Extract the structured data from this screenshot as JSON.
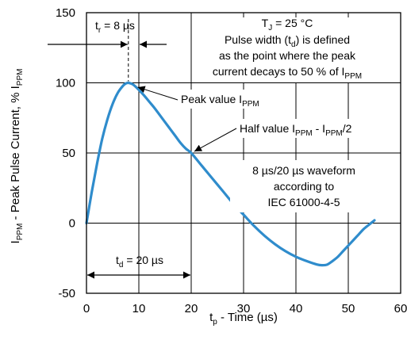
{
  "chart_data": {
    "type": "line",
    "xlabel_main": "t",
    "xlabel_sub": "p",
    "xlabel_rest": " - Time (µs)",
    "ylabel_parts": [
      {
        "t": "I",
        "s": false
      },
      {
        "t": "PPM",
        "s": true
      },
      {
        "t": " - Peak Pulse Current, % I",
        "s": false
      },
      {
        "t": "PPM",
        "s": true
      }
    ],
    "xlim": [
      0,
      60
    ],
    "ylim": [
      -50,
      150
    ],
    "xticks": [
      0,
      10,
      20,
      30,
      40,
      50,
      60
    ],
    "yticks": [
      -50,
      0,
      50,
      100,
      150
    ],
    "grid": true,
    "series": [
      {
        "color": "#2f8ccc",
        "x": [
          0,
          1,
          2,
          3,
          4,
          5,
          6,
          7,
          7.5,
          8,
          8.5,
          9,
          10,
          11,
          12,
          13,
          14,
          15,
          16,
          17,
          18,
          19,
          20,
          22,
          24,
          26,
          28,
          30,
          32,
          34,
          36,
          38,
          40,
          42,
          44,
          45,
          46,
          47,
          48,
          49,
          50,
          51,
          52,
          53,
          54,
          55
        ],
        "y": [
          0,
          22,
          42,
          60,
          74,
          85,
          93,
          98,
          99.5,
          100,
          99.5,
          98.5,
          95,
          91,
          86.5,
          82,
          77,
          72,
          67,
          62,
          57,
          53,
          50,
          41,
          32,
          23,
          14,
          6,
          -2,
          -9,
          -15,
          -20,
          -24,
          -27,
          -29.5,
          -30,
          -29.5,
          -27,
          -24,
          -20,
          -16,
          -12,
          -8,
          -4,
          -1,
          2
        ]
      }
    ],
    "annotations": {
      "tr": {
        "main": "t",
        "sub": "r",
        "rest": " = 8 µs"
      },
      "td": {
        "main": "t",
        "sub": "d",
        "rest": " = 20 µs"
      },
      "tj": {
        "main": "T",
        "sub": "J",
        "rest": " = 25 °C"
      },
      "pw_line1_a": "Pulse width (t",
      "pw_line1_sub": "d",
      "pw_line1_b": ") is defined",
      "pw_line2": "as the point where the peak",
      "pw_line3_a": "current decays to 50 % of I",
      "pw_line3_sub": "PPM",
      "peak": {
        "main": "Peak value I",
        "sub": "PPM"
      },
      "half": {
        "a": "Half value I",
        "sub1": "PPM",
        "b": " - I",
        "sub2": "PPM",
        "c": "/2"
      },
      "wave1": "8 µs/20 µs waveform",
      "wave2": "according to",
      "wave3": "IEC 61000-4-5"
    }
  }
}
